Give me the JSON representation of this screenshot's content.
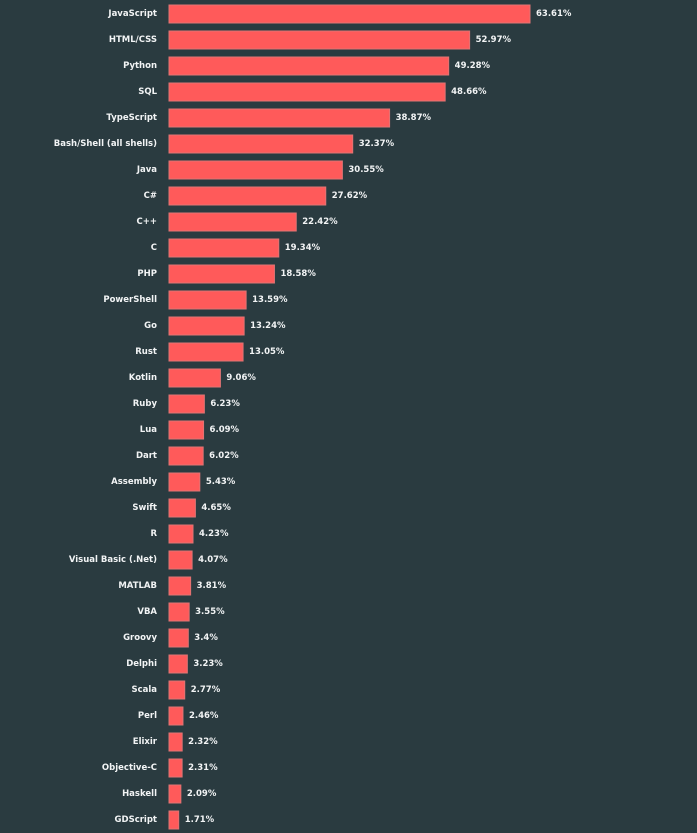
{
  "colors": {
    "background": "#2a3b40",
    "bar_fill": "#ff5a5a",
    "bar_stroke": "#e07474",
    "text": "#f2f4f5"
  },
  "chart_data": {
    "type": "bar",
    "orientation": "horizontal",
    "title": "",
    "xlabel": "",
    "ylabel": "",
    "xlim": [
      0,
      63.61
    ],
    "grid": false,
    "legend": "none",
    "value_suffix": "%",
    "categories": [
      "JavaScript",
      "HTML/CSS",
      "Python",
      "SQL",
      "TypeScript",
      "Bash/Shell (all shells)",
      "Java",
      "C#",
      "C++",
      "C",
      "PHP",
      "PowerShell",
      "Go",
      "Rust",
      "Kotlin",
      "Ruby",
      "Lua",
      "Dart",
      "Assembly",
      "Swift",
      "R",
      "Visual Basic (.Net)",
      "MATLAB",
      "VBA",
      "Groovy",
      "Delphi",
      "Scala",
      "Perl",
      "Elixir",
      "Objective-C",
      "Haskell",
      "GDScript"
    ],
    "values": [
      63.61,
      52.97,
      49.28,
      48.66,
      38.87,
      32.37,
      30.55,
      27.62,
      22.42,
      19.34,
      18.58,
      13.59,
      13.24,
      13.05,
      9.06,
      6.23,
      6.09,
      6.02,
      5.43,
      4.65,
      4.23,
      4.07,
      3.81,
      3.55,
      3.4,
      3.23,
      2.77,
      2.46,
      2.32,
      2.31,
      2.09,
      1.71
    ],
    "value_labels": [
      "63.61%",
      "52.97%",
      "49.28%",
      "48.66%",
      "38.87%",
      "32.37%",
      "30.55%",
      "27.62%",
      "22.42%",
      "19.34%",
      "18.58%",
      "13.59%",
      "13.24%",
      "13.05%",
      "9.06%",
      "6.23%",
      "6.09%",
      "6.02%",
      "5.43%",
      "4.65%",
      "4.23%",
      "4.07%",
      "3.81%",
      "3.55%",
      "3.4%",
      "3.23%",
      "2.77%",
      "2.46%",
      "2.32%",
      "2.31%",
      "2.09%",
      "1.71%"
    ]
  }
}
